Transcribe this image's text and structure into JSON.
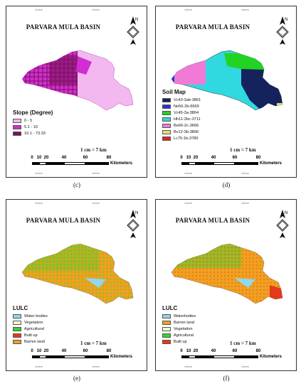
{
  "panels": {
    "c": {
      "title": "PARVARA MULA BASIN",
      "legend_title": "Slope (Degree)",
      "legend": [
        {
          "label": "0 - 5",
          "color": "#f4b8f0"
        },
        {
          "label": "5.1 - 10",
          "color": "#d02ed0"
        },
        {
          "label": "10.1 - 73.33",
          "color": "#7a0f5a"
        }
      ],
      "scale_text": "1 cm = 7 km",
      "caption": "(c)"
    },
    "d": {
      "title": "PARVARA MULA BASIN",
      "legend_title": "Soil Map",
      "legend": [
        {
          "label": "Vc43-3ab-3861",
          "color": "#14235c"
        },
        {
          "label": "Ne56-2b-6669",
          "color": "#2a32d8"
        },
        {
          "label": "Vc45-3a-3864",
          "color": "#22d422"
        },
        {
          "label": "Hh11-2bc-3711",
          "color": "#30d8e0"
        },
        {
          "label": "Be66-2c-3666",
          "color": "#f07ad6"
        },
        {
          "label": "Bv12-3b-3896",
          "color": "#e2e07a"
        },
        {
          "label": "Lc75-1b-3780",
          "color": "#e02222"
        }
      ],
      "scale_text": "1 cm = 7 km",
      "caption": "(d)"
    },
    "e": {
      "title": "PARVARA MULA BASIN",
      "legend_title": "LULC",
      "legend": [
        {
          "label": "Water bodies",
          "color": "#8fd8f0"
        },
        {
          "label": "Vegetation",
          "color": "#fff6d8"
        },
        {
          "label": "Agricultural",
          "color": "#2ed82e"
        },
        {
          "label": "Built up",
          "color": "#e23a1a"
        },
        {
          "label": "Barren land",
          "color": "#f0a020"
        }
      ],
      "scale_text": "1 cm = 7 km",
      "caption": "(e)"
    },
    "f": {
      "title": "PARVARA MULA BASIN",
      "legend_title": "LULC",
      "legend": [
        {
          "label": "Waterbodies",
          "color": "#8fd8f0"
        },
        {
          "label": "Barren land",
          "color": "#f0a020"
        },
        {
          "label": "Vegetation",
          "color": "#fff6d8"
        },
        {
          "label": "Agricultural",
          "color": "#2ed82e"
        },
        {
          "label": "Built up",
          "color": "#e23a1a"
        }
      ],
      "scale_text": "1 cm = 7 km",
      "caption": "(f)"
    }
  },
  "scale_numbers": [
    "0",
    "10",
    "20",
    "40",
    "60",
    "80"
  ],
  "scale_unit": "Kilometers",
  "north_label": "N",
  "graticule_tick": "74°0'0\"E"
}
